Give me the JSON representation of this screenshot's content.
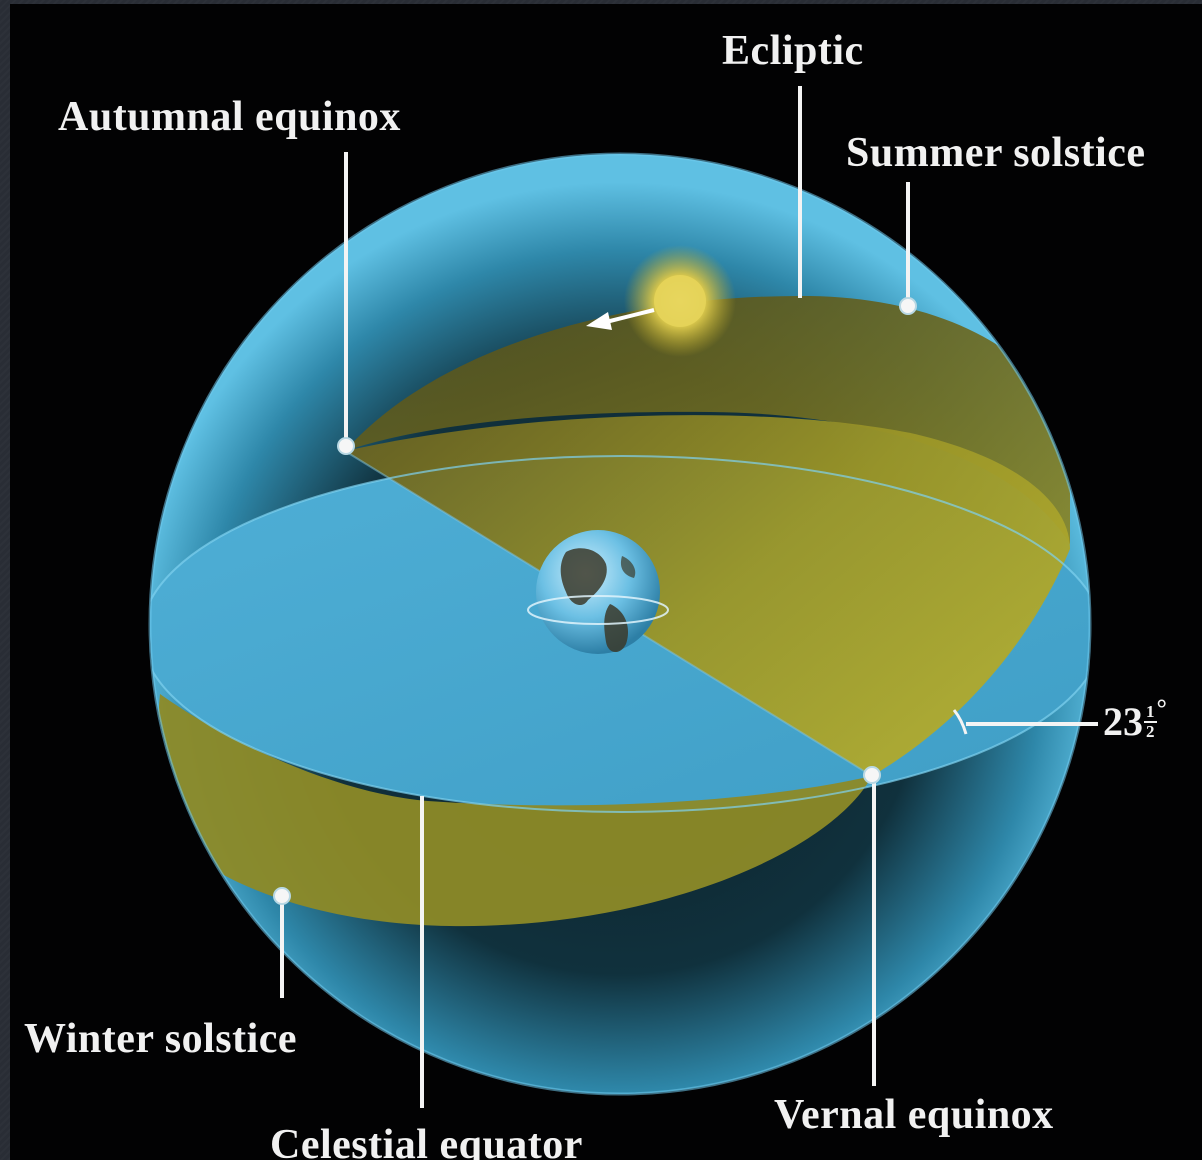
{
  "labels": {
    "ecliptic": "Ecliptic",
    "autumnal_equinox": "Autumnal equinox",
    "summer_solstice": "Summer solstice",
    "winter_solstice": "Winter solstice",
    "celestial_equator": "Celestial equator",
    "vernal_equinox": "Vernal equinox"
  },
  "angle": {
    "whole": "23",
    "numerator": "1",
    "denominator": "2",
    "unit": "°"
  },
  "colors": {
    "background": "#020203",
    "celestial_sphere": "#3d9ec4",
    "equator_plane": "#56b3d8",
    "ecliptic_plane": "#a7a128",
    "sun": "#f0e060",
    "label_text": "#f1f1f1"
  }
}
